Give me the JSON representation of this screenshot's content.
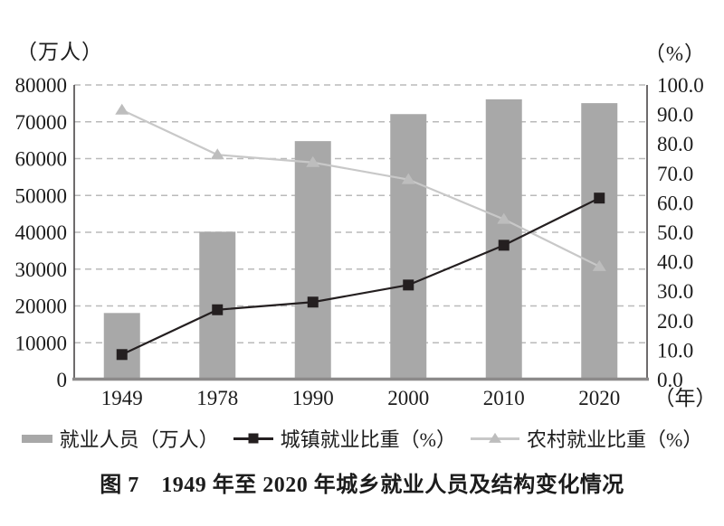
{
  "figure": {
    "caption": "图 7　1949 年至 2020 年城乡就业人员及结构变化情况"
  },
  "legend": [
    {
      "label": "就业人员（万人）",
      "swatch": "gray-bar"
    },
    {
      "label": "城镇就业比重（%）",
      "swatch": "dark-line-square"
    },
    {
      "label": "农村就业比重（%）",
      "swatch": "light-line-triangle"
    }
  ],
  "chart_data": {
    "type": "bar+line",
    "title": "图 7　1949 年至 2020 年城乡就业人员及结构变化情况",
    "categories": [
      "1949",
      "1978",
      "1990",
      "2000",
      "2010",
      "2020"
    ],
    "series": [
      {
        "name": "就业人员（万人）",
        "type": "bar",
        "axis": "left",
        "values": [
          18082,
          40152,
          64749,
          72085,
          76105,
          75064
        ],
        "color": "#a8a8a8"
      },
      {
        "name": "城镇就业比重（%）",
        "type": "line",
        "axis": "right",
        "marker": "square",
        "values": [
          8.5,
          23.7,
          26.3,
          32.1,
          45.6,
          61.6
        ],
        "color": "#241f20"
      },
      {
        "name": "农村就业比重（%）",
        "type": "line",
        "axis": "right",
        "marker": "triangle",
        "values": [
          91.5,
          76.3,
          73.7,
          67.9,
          54.4,
          38.4
        ],
        "color": "#c8c8c8",
        "marker_color": "#bdbdbd"
      }
    ],
    "left_axis": {
      "label": "（万人）",
      "min": 0,
      "max": 80000,
      "step": 10000,
      "decimals": 0
    },
    "right_axis": {
      "label": "（%）",
      "min": 0,
      "max": 100,
      "step": 10,
      "decimals": 1
    },
    "x_axis_unit": "（年）",
    "grid": "horizontal-dashed",
    "legend_position": "bottom",
    "colors": {
      "grid": "#bababa",
      "axis_vertical": "#4a4647",
      "axis_bottom": "#8c8a8a",
      "tick_text": "#1c1c1c"
    }
  }
}
